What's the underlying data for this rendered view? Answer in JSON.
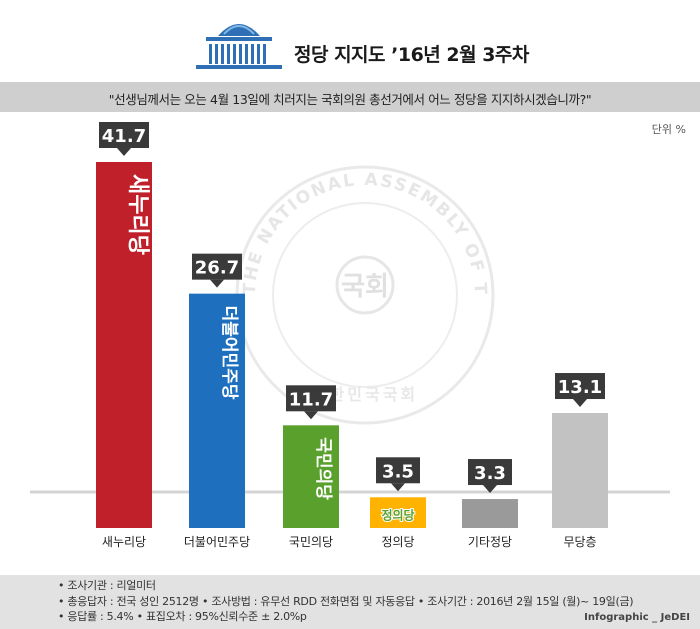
{
  "header": {
    "title": "정당 지지도 ’16년 2월 3주차",
    "question": "\"선생님께서는 오는 4월 13일에 치러지는 국회의원 총선거에서 어느 정당을 지지하시겠습니까?\"",
    "unit": "단위 %",
    "logo_icon": "national-assembly-icon"
  },
  "watermark": {
    "ring_text": "THE NATIONAL ASSEMBLY OF THE REPUBLIC OF KOREA",
    "center_text": "국회",
    "lower_text": "대한민국국회"
  },
  "chart_data": {
    "type": "bar",
    "categories": [
      "새누리당",
      "더불어민주당",
      "국민의당",
      "정의당",
      "기타정당",
      "무당층"
    ],
    "values": [
      41.7,
      26.7,
      11.7,
      3.5,
      3.3,
      13.1
    ],
    "value_labels": [
      "41.7",
      "26.7",
      "11.7",
      "3.5",
      "3.3",
      "13.1"
    ],
    "bar_logos": [
      "새누리당",
      "더불어민주당",
      "국민의당",
      "정의당",
      "",
      ""
    ],
    "colors": [
      "#c0202a",
      "#1f6fbf",
      "#5aa02c",
      "#ffb300",
      "#9a9a9a",
      "#c2c2c2"
    ],
    "unit": "%",
    "ylim": [
      0,
      45
    ]
  },
  "footer": {
    "lines": [
      "• 조사기관 : 리얼미터",
      "• 총응답자 : 전국 성인 2512명  • 조사방법 : 유무선 RDD 전화면접 및 자동응답  • 조사기간 : 2016년 2월 15일 (월)~ 19일(금)",
      "• 응답률 : 5.4%  • 표집오차 : 95%신뢰수준 ± 2.0%p"
    ],
    "credit": "Infographic _ JeDEI"
  }
}
